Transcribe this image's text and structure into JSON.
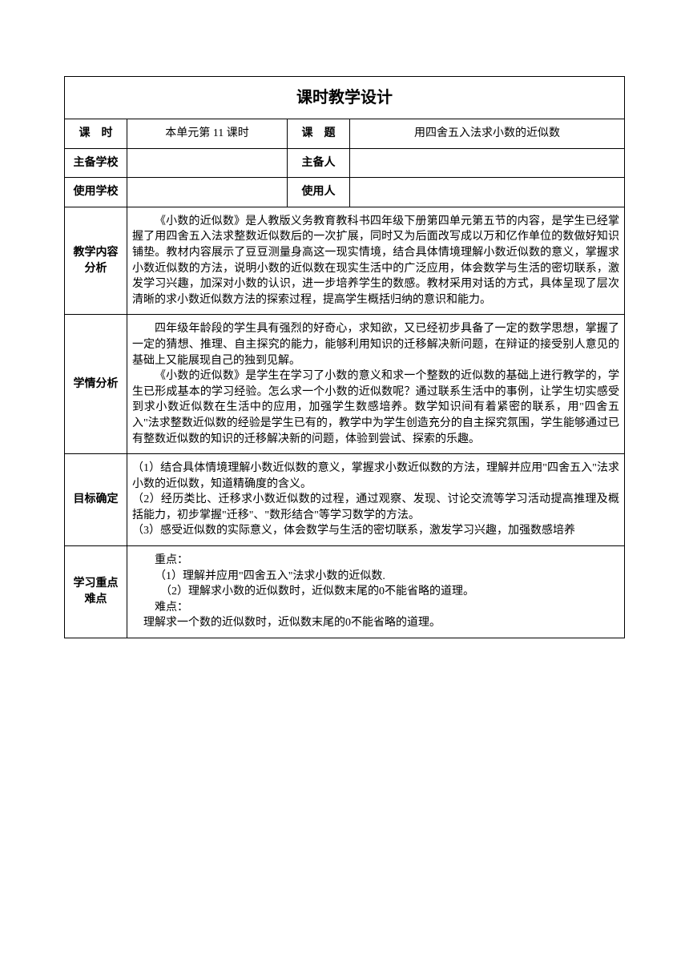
{
  "title": "课时教学设计",
  "header": {
    "lesson_label": "课　时",
    "lesson_value": "本单元第 11 课时",
    "topic_label": "课　题",
    "topic_value": "用四舍五入法求小数的近似数",
    "main_school_label": "主备学校",
    "main_school_value": "",
    "main_person_label": "主备人",
    "main_person_value": "",
    "use_school_label": "使用学校",
    "use_school_value": "",
    "use_person_label": "使用人",
    "use_person_value": ""
  },
  "sections": {
    "content_analysis": {
      "label": "教学内容分析",
      "text": "《小数的近似数》是人教版义务教育教科书四年级下册第四单元第五节的内容，是学生已经掌握了用四舍五入法求整数近似数后的一次扩展，同时又为后面改写成以万和亿作单位的数做好知识铺垫。教材内容展示了豆豆测量身高这一现实情境，结合具体情境理解小数近似数的意义，掌握求小数近似数的方法，说明小数的近似数在现实生活中的广泛应用，体会数学与生活的密切联系，激发学习兴趣，加深对小数的认识，进一步培养学生的数感。教材采用对话的方式，具体呈现了层次清晰的求小数近似数方法的探索过程，提高学生概括归纳的意识和能力。"
    },
    "student_analysis": {
      "label": "学情分析",
      "p1": "四年级年龄段的学生具有强烈的好奇心，求知欲，又已经初步具备了一定的数学思想，掌握了一定的猜想、推理、自主探究的能力，能够利用知识的迁移解决新问题，在辩证的接受别人意见的基础上又能展现自己的独到见解。",
      "p2": "《小数的近似数》是学生在学习了小数的意义和求一个整数的近似数的基础上进行教学的，学生已形成基本的学习经验。怎么求一个小数的近似数呢？通过联系生活中的事例，让学生切实感受到求小数近似数在生活中的应用，加强学生数感培养。数学知识间有着紧密的联系，用\"四舍五入\"法求整数近似数的经验是学生已有的，教学中为学生创造充分的自主探究氛围，学生能够通过已有整数近似数的知识的迁移解决新的问题，体验到尝试、探索的乐趣。"
    },
    "objectives": {
      "label": "目标确定",
      "item1": "（1）结合具体情境理解小数近似数的意义，掌握求小数近似数的方法，理解并应用\"四舍五入\"法求小数的近似数，知道精确度的含义。",
      "item2": "（2）经历类比、迁移求小数近似数的过程，通过观察、发现、讨论交流等学习活动提高推理及概括能力，初步掌握\"迁移\"、\"数形结合\"等学习数学的方法。",
      "item3": "（3）感受近似数的实际意义，体会数学与生活的密切联系，激发学习兴趣，加强数感培养"
    },
    "key_points": {
      "label": "学习重点难点",
      "key_title": "重点：",
      "key1": "（1）理解并应用\"四舍五入\"法求小数的近似数.",
      "key2": "（2）理解求小数的近似数时，近似数末尾的0不能省略的道理。",
      "diff_title": "难点：",
      "diff1": "理解求一个数的近似数时，近似数末尾的0不能省略的道理。"
    }
  }
}
